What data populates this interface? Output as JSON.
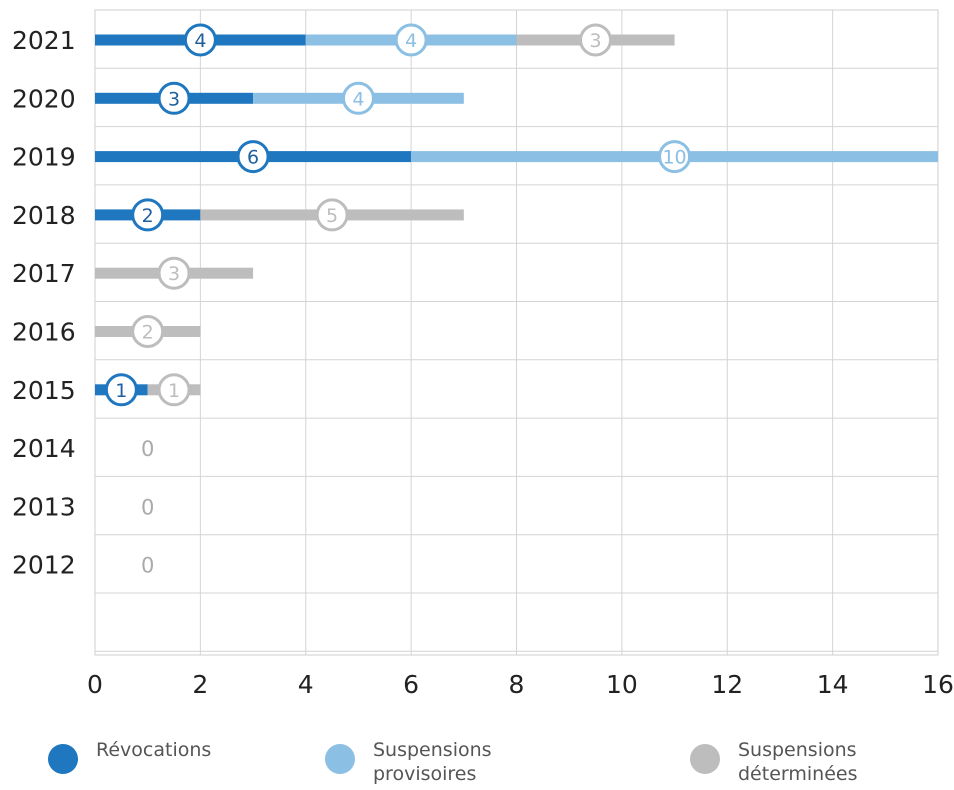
{
  "chart_data": {
    "type": "bar",
    "orientation": "horizontal",
    "stacked": true,
    "categories": [
      "2021",
      "2020",
      "2019",
      "2018",
      "2017",
      "2016",
      "2015",
      "2014",
      "2013",
      "2012"
    ],
    "series": [
      {
        "name": "Révocations",
        "color": "#1f77bf",
        "values": [
          4,
          3,
          6,
          2,
          0,
          0,
          1,
          0,
          0,
          0
        ]
      },
      {
        "name": "Suspensions\nprovisoires",
        "color": "#8bbfe3",
        "values": [
          4,
          4,
          10,
          0,
          0,
          0,
          0,
          0,
          0,
          0
        ]
      },
      {
        "name": "Suspensions\ndéterminées",
        "color": "#bdbdbd",
        "values": [
          3,
          0,
          0,
          5,
          3,
          2,
          1,
          0,
          0,
          0
        ]
      }
    ],
    "zero_label": "0",
    "xlim": [
      0,
      16
    ],
    "xticks": [
      0,
      2,
      4,
      6,
      8,
      10,
      12,
      14,
      16
    ],
    "grid": true,
    "legend_position": "bottom"
  }
}
